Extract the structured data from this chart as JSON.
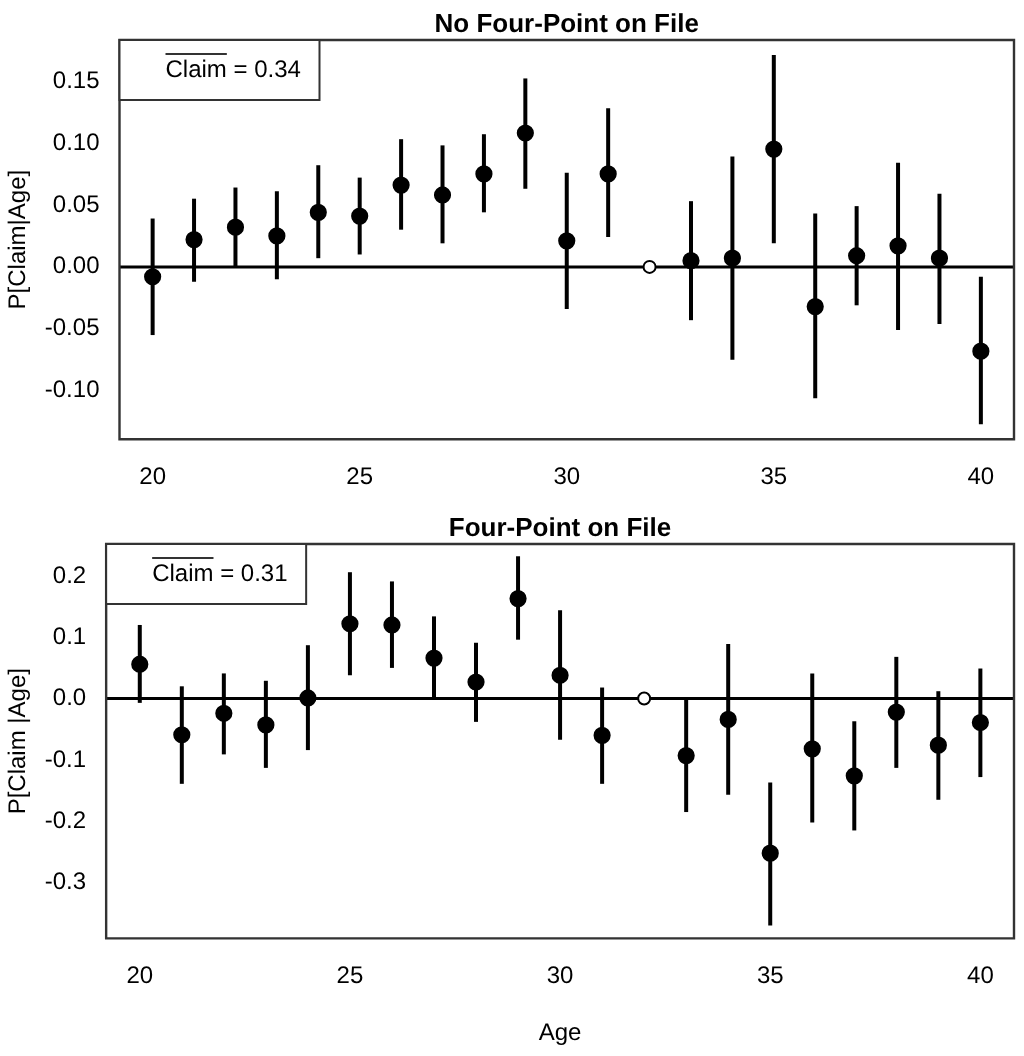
{
  "chart_data": [
    {
      "type": "scatter",
      "title": "No Four-Point on File",
      "ylabel": "P[Claim|Age]",
      "marker": "circle",
      "xlim": [
        19.2,
        40.8
      ],
      "xticks": [
        20,
        25,
        30,
        35,
        40
      ],
      "ylim": [
        -0.139,
        0.183
      ],
      "yticks": [
        {
          "value": -0.1,
          "label": "-0.10"
        },
        -0.05,
        {
          "value": 0,
          "label": "0.00"
        },
        0.05,
        {
          "value": 0.1,
          "label": "0.10"
        },
        0.15
      ],
      "annotations": [
        "Claim = 0.34"
      ],
      "ref_lines": [
        {
          "axis": "y",
          "value": 0,
          "color": "#000000"
        }
      ],
      "series": [
        {
          "color": "#000000",
          "x": [
            20,
            21,
            22,
            23,
            24,
            25,
            26,
            27,
            28,
            29,
            30,
            31,
            33,
            34,
            35,
            36,
            37,
            38,
            39,
            40
          ],
          "values": [
            -0.008,
            0.022,
            0.032,
            0.025,
            0.044,
            0.041,
            0.066,
            0.058,
            0.075,
            0.108,
            0.021,
            0.075,
            0.005,
            0.007,
            0.095,
            -0.032,
            0.009,
            0.017,
            0.007,
            -0.068
          ],
          "errors": [
            [
              -0.055,
              0.039
            ],
            [
              -0.012,
              0.055
            ],
            [
              0.0,
              0.064
            ],
            [
              -0.01,
              0.061
            ],
            [
              0.007,
              0.082
            ],
            [
              0.01,
              0.072
            ],
            [
              0.03,
              0.103
            ],
            [
              0.019,
              0.098
            ],
            [
              0.044,
              0.107
            ],
            [
              0.063,
              0.152
            ],
            [
              -0.034,
              0.076
            ],
            [
              0.024,
              0.128
            ],
            [
              -0.043,
              0.053
            ],
            [
              -0.075,
              0.089
            ],
            [
              0.019,
              0.171
            ],
            [
              -0.106,
              0.043
            ],
            [
              -0.031,
              0.049
            ],
            [
              -0.051,
              0.084
            ],
            [
              -0.046,
              0.059
            ],
            [
              -0.127,
              -0.008
            ]
          ]
        },
        {
          "color": "#000000",
          "x": [
            32
          ],
          "values": [
            0
          ]
        }
      ]
    },
    {
      "type": "scatter",
      "title": "Four-Point on File",
      "xlabel": "Age",
      "ylabel": "P[Claim |Age]",
      "marker": "circle",
      "xlim": [
        19.2,
        40.8
      ],
      "xticks": [
        20,
        25,
        30,
        35,
        40
      ],
      "ylim": [
        -0.391,
        0.252
      ],
      "yticks": [
        -0.3,
        -0.2,
        -0.1,
        {
          "value": 0,
          "label": "0.0"
        },
        0.1,
        0.2
      ],
      "annotations": [
        "Claim = 0.31"
      ],
      "ref_lines": [
        {
          "axis": "y",
          "value": 0,
          "color": "#000000"
        }
      ],
      "series": [
        {
          "color": "#000000",
          "x": [
            20,
            21,
            22,
            23,
            24,
            25,
            26,
            27,
            28,
            29,
            30,
            31,
            33,
            34,
            35,
            36,
            37,
            38,
            39,
            40
          ],
          "values": [
            0.056,
            -0.059,
            -0.024,
            -0.043,
            0.001,
            0.122,
            0.12,
            0.066,
            0.027,
            0.163,
            0.038,
            -0.06,
            -0.093,
            -0.034,
            -0.252,
            -0.082,
            -0.126,
            -0.022,
            -0.076,
            -0.039
          ],
          "errors": [
            [
              -0.007,
              0.12
            ],
            [
              -0.139,
              0.02
            ],
            [
              -0.091,
              0.041
            ],
            [
              -0.113,
              0.029
            ],
            [
              -0.084,
              0.087
            ],
            [
              0.038,
              0.206
            ],
            [
              0.05,
              0.191
            ],
            [
              0.0,
              0.134
            ],
            [
              -0.038,
              0.091
            ],
            [
              0.096,
              0.232
            ],
            [
              -0.067,
              0.144
            ],
            [
              -0.139,
              0.018
            ],
            [
              -0.185,
              0.0
            ],
            [
              -0.157,
              0.089
            ],
            [
              -0.37,
              -0.137
            ],
            [
              -0.202,
              0.041
            ],
            [
              -0.215,
              -0.037
            ],
            [
              -0.113,
              0.068
            ],
            [
              -0.165,
              0.012
            ],
            [
              -0.128,
              0.049
            ]
          ]
        },
        {
          "color": "#000000",
          "x": [
            32
          ],
          "values": [
            0
          ]
        }
      ]
    }
  ]
}
